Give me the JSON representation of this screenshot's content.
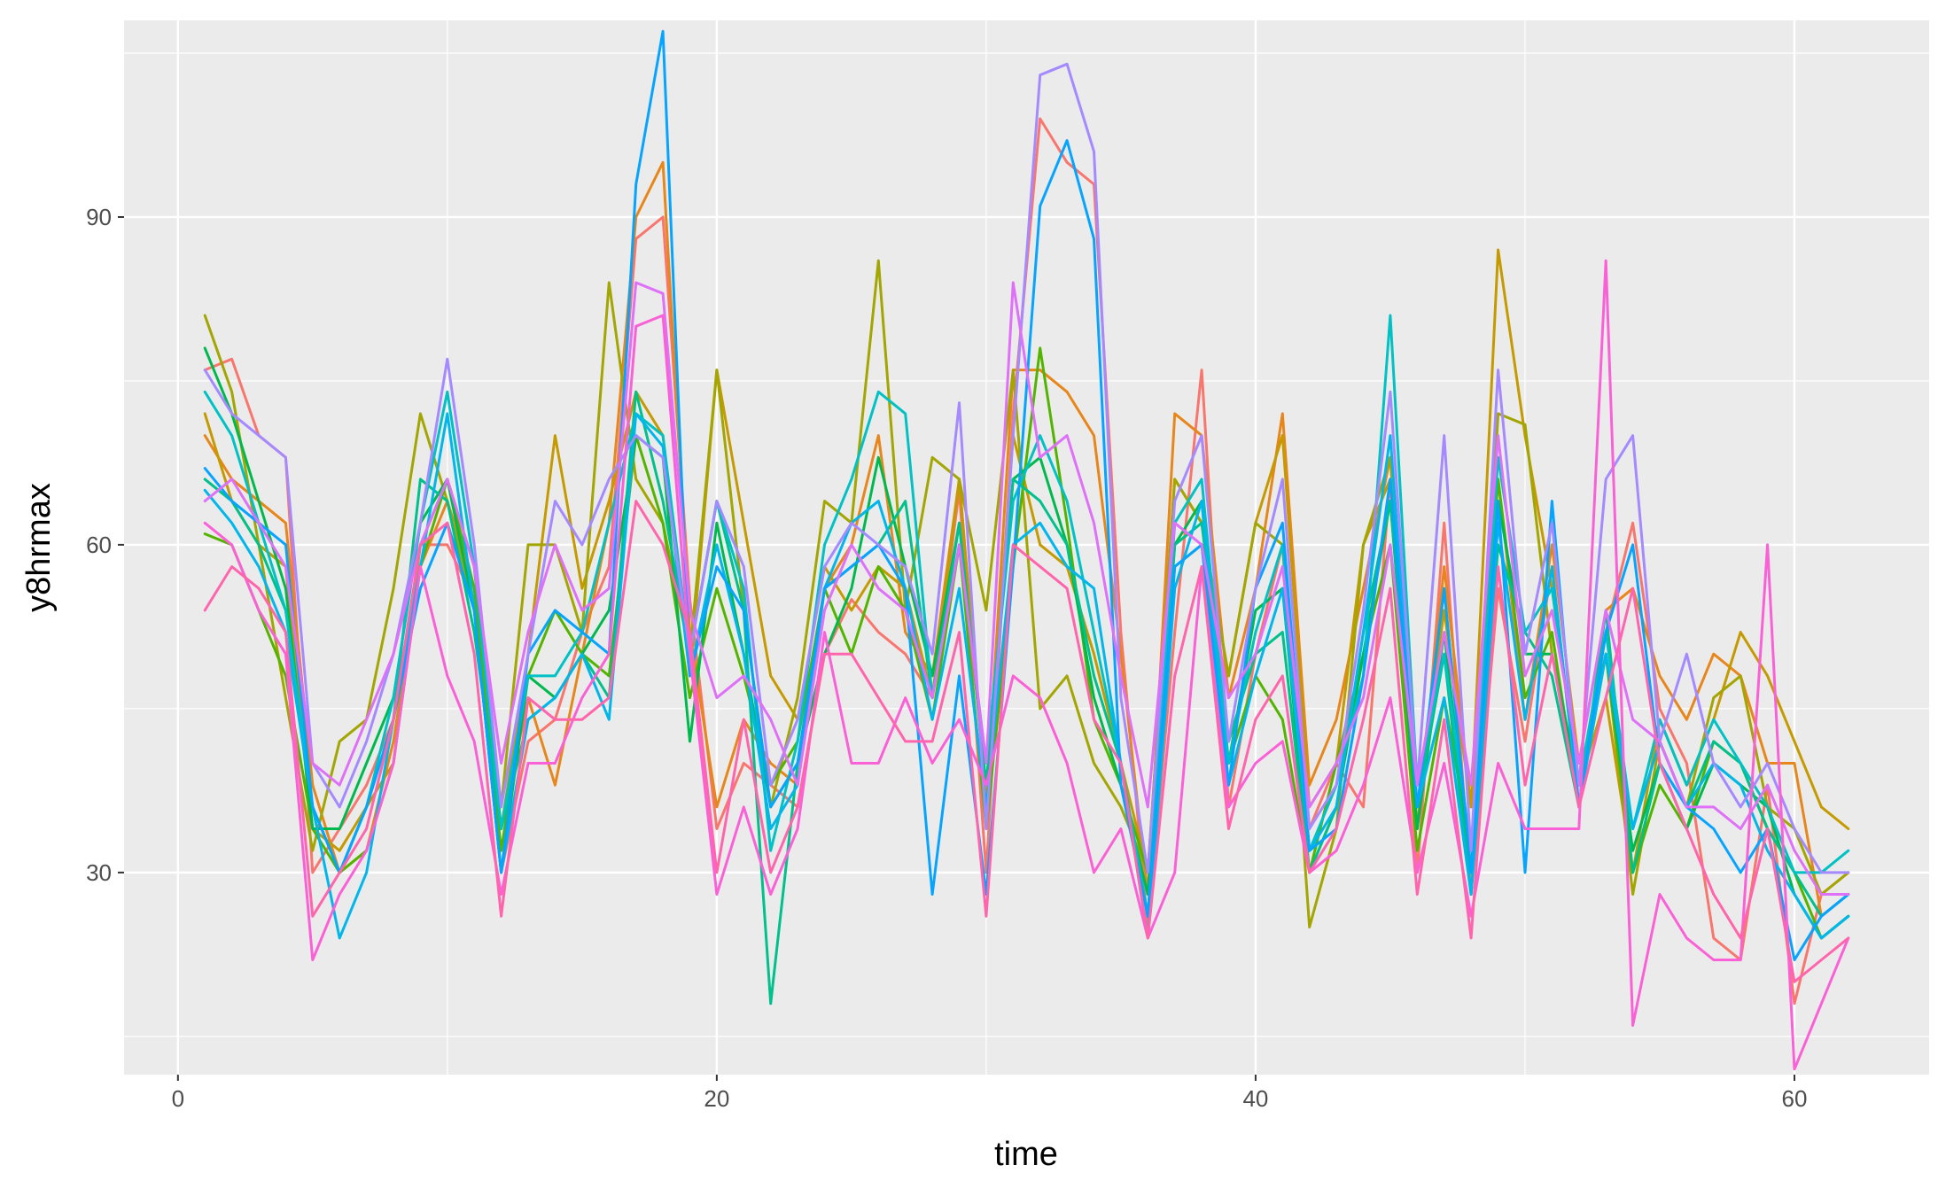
{
  "chart_data": {
    "type": "line",
    "title": "",
    "xlabel": "time",
    "ylabel": "y8hrmax",
    "xlim": [
      -2,
      65
    ],
    "ylim": [
      11.5,
      108
    ],
    "x_ticks": [
      0,
      20,
      40,
      60
    ],
    "x_tick_labels": [
      "0",
      "20",
      "40",
      "60"
    ],
    "y_ticks": [
      30,
      60,
      90
    ],
    "y_tick_labels": [
      "30",
      "60",
      "90"
    ],
    "grid": true,
    "legend": "none",
    "x": [
      1,
      2,
      3,
      4,
      5,
      6,
      7,
      8,
      9,
      10,
      11,
      12,
      13,
      14,
      15,
      16,
      17,
      18,
      19,
      20,
      21,
      22,
      23,
      24,
      25,
      26,
      27,
      28,
      29,
      30,
      31,
      32,
      33,
      34,
      35,
      36,
      37,
      38,
      39,
      40,
      41,
      42,
      43,
      44,
      45,
      46,
      47,
      48,
      49,
      50,
      51,
      52,
      53,
      54,
      55,
      56,
      57,
      58,
      59,
      60,
      61,
      62
    ],
    "series": [
      {
        "color": "#F8766D",
        "values": [
          76,
          77,
          70,
          68,
          30,
          34,
          38,
          44,
          60,
          60,
          55,
          30,
          42,
          44,
          52,
          58,
          88,
          90,
          55,
          34,
          40,
          38,
          36,
          50,
          55,
          52,
          50,
          46,
          65,
          30,
          72,
          99,
          95,
          93,
          52,
          25,
          52,
          76,
          36,
          50,
          60,
          34,
          40,
          36,
          66,
          30,
          62,
          28,
          56,
          42,
          58,
          36,
          52,
          62,
          45,
          40,
          24,
          22,
          38,
          18,
          28,
          30
        ]
      },
      {
        "color": "#E7861B",
        "values": [
          70,
          66,
          64,
          62,
          38,
          30,
          32,
          42,
          58,
          64,
          56,
          34,
          46,
          38,
          50,
          62,
          90,
          95,
          52,
          36,
          44,
          40,
          38,
          56,
          60,
          70,
          52,
          48,
          66,
          36,
          76,
          76,
          74,
          70,
          50,
          28,
          72,
          70,
          46,
          56,
          72,
          38,
          44,
          56,
          68,
          34,
          58,
          36,
          66,
          44,
          60,
          40,
          54,
          56,
          48,
          44,
          50,
          48,
          40,
          40,
          26,
          28
        ]
      },
      {
        "color": "#C49A00",
        "values": [
          72,
          64,
          60,
          58,
          34,
          32,
          36,
          40,
          60,
          66,
          58,
          34,
          50,
          70,
          56,
          64,
          74,
          70,
          48,
          76,
          62,
          48,
          44,
          58,
          54,
          58,
          56,
          46,
          66,
          36,
          70,
          60,
          58,
          50,
          40,
          30,
          66,
          62,
          48,
          62,
          70,
          36,
          40,
          60,
          66,
          36,
          54,
          36,
          87,
          70,
          56,
          38,
          46,
          30,
          44,
          38,
          44,
          52,
          48,
          42,
          36,
          34
        ]
      },
      {
        "color": "#A3A500",
        "values": [
          81,
          74,
          60,
          46,
          32,
          42,
          44,
          56,
          72,
          64,
          54,
          36,
          60,
          60,
          52,
          84,
          66,
          62,
          50,
          76,
          54,
          36,
          46,
          64,
          62,
          86,
          54,
          68,
          66,
          54,
          76,
          45,
          48,
          40,
          36,
          30,
          66,
          62,
          48,
          62,
          60,
          25,
          34,
          60,
          68,
          34,
          56,
          30,
          72,
          71,
          50,
          38,
          50,
          28,
          42,
          36,
          46,
          48,
          36,
          34,
          28,
          30
        ]
      },
      {
        "color": "#53B400",
        "values": [
          61,
          60,
          54,
          48,
          34,
          30,
          32,
          40,
          58,
          66,
          56,
          32,
          48,
          54,
          50,
          48,
          70,
          62,
          46,
          56,
          48,
          38,
          42,
          56,
          50,
          58,
          54,
          44,
          60,
          34,
          58,
          78,
          62,
          44,
          38,
          30,
          58,
          60,
          40,
          48,
          44,
          30,
          40,
          50,
          60,
          32,
          46,
          32,
          66,
          46,
          52,
          36,
          50,
          30,
          38,
          34,
          42,
          40,
          34,
          30,
          24,
          26
        ]
      },
      {
        "color": "#00B94E",
        "values": [
          78,
          72,
          64,
          56,
          34,
          34,
          40,
          46,
          62,
          66,
          54,
          30,
          48,
          46,
          50,
          54,
          70,
          68,
          42,
          62,
          50,
          36,
          40,
          50,
          56,
          68,
          58,
          48,
          62,
          38,
          66,
          68,
          60,
          46,
          38,
          28,
          60,
          64,
          40,
          54,
          56,
          30,
          36,
          50,
          64,
          34,
          52,
          30,
          64,
          50,
          50,
          38,
          50,
          32,
          40,
          34,
          40,
          38,
          36,
          28,
          24,
          26
        ]
      },
      {
        "color": "#00C08B",
        "values": [
          66,
          64,
          60,
          54,
          36,
          30,
          36,
          44,
          66,
          64,
          52,
          34,
          44,
          46,
          50,
          46,
          74,
          64,
          50,
          64,
          54,
          18,
          40,
          56,
          58,
          60,
          64,
          46,
          62,
          38,
          66,
          64,
          60,
          48,
          40,
          26,
          60,
          62,
          42,
          50,
          52,
          30,
          36,
          52,
          64,
          36,
          50,
          28,
          60,
          52,
          48,
          36,
          54,
          30,
          40,
          36,
          42,
          40,
          34,
          30,
          26,
          28
        ]
      },
      {
        "color": "#00C1C4",
        "values": [
          74,
          70,
          62,
          54,
          36,
          30,
          36,
          46,
          62,
          74,
          58,
          34,
          48,
          48,
          52,
          62,
          72,
          70,
          50,
          64,
          56,
          32,
          42,
          60,
          66,
          74,
          72,
          46,
          60,
          40,
          64,
          70,
          64,
          52,
          40,
          26,
          62,
          66,
          40,
          52,
          60,
          32,
          38,
          48,
          81,
          38,
          50,
          32,
          68,
          52,
          56,
          38,
          52,
          34,
          44,
          38,
          44,
          40,
          36,
          30,
          30,
          32
        ]
      },
      {
        "color": "#00B6EB",
        "values": [
          65,
          62,
          58,
          52,
          36,
          24,
          30,
          44,
          58,
          72,
          54,
          30,
          44,
          46,
          50,
          44,
          72,
          69,
          48,
          60,
          50,
          34,
          38,
          56,
          62,
          64,
          56,
          44,
          56,
          36,
          60,
          62,
          58,
          56,
          40,
          24,
          56,
          64,
          38,
          48,
          56,
          32,
          36,
          52,
          70,
          36,
          46,
          28,
          62,
          44,
          58,
          36,
          50,
          34,
          42,
          36,
          40,
          38,
          32,
          28,
          24,
          26
        ]
      },
      {
        "color": "#06A4FF",
        "values": [
          67,
          64,
          62,
          60,
          36,
          30,
          36,
          44,
          56,
          62,
          54,
          30,
          50,
          54,
          52,
          50,
          93,
          107,
          48,
          58,
          54,
          36,
          40,
          56,
          58,
          60,
          56,
          28,
          48,
          28,
          58,
          91,
          97,
          88,
          38,
          26,
          58,
          60,
          38,
          56,
          62,
          32,
          34,
          48,
          66,
          36,
          56,
          30,
          64,
          30,
          64,
          36,
          52,
          60,
          40,
          36,
          34,
          30,
          34,
          22,
          26,
          28
        ]
      },
      {
        "color": "#A58AFF",
        "values": [
          76,
          72,
          70,
          68,
          40,
          36,
          42,
          50,
          62,
          77,
          60,
          36,
          50,
          64,
          60,
          66,
          70,
          68,
          50,
          64,
          58,
          38,
          44,
          58,
          62,
          60,
          58,
          50,
          73,
          34,
          70,
          103,
          104,
          96,
          46,
          30,
          64,
          70,
          42,
          56,
          66,
          34,
          38,
          54,
          74,
          38,
          70,
          32,
          76,
          50,
          62,
          38,
          66,
          70,
          42,
          50,
          40,
          36,
          40,
          34,
          30,
          30
        ]
      },
      {
        "color": "#DF70F8",
        "values": [
          64,
          66,
          62,
          58,
          40,
          38,
          44,
          50,
          60,
          66,
          58,
          40,
          52,
          60,
          54,
          56,
          84,
          83,
          54,
          46,
          48,
          44,
          38,
          54,
          60,
          56,
          54,
          46,
          60,
          40,
          84,
          68,
          70,
          62,
          48,
          36,
          62,
          60,
          46,
          50,
          58,
          36,
          40,
          46,
          60,
          38,
          52,
          38,
          70,
          48,
          54,
          40,
          54,
          44,
          42,
          36,
          36,
          34,
          38,
          32,
          28,
          28
        ]
      },
      {
        "color": "#FB61D7",
        "values": [
          62,
          60,
          54,
          50,
          22,
          28,
          32,
          40,
          58,
          48,
          42,
          28,
          40,
          40,
          46,
          50,
          80,
          81,
          50,
          28,
          36,
          28,
          34,
          52,
          40,
          40,
          46,
          40,
          44,
          38,
          48,
          46,
          40,
          30,
          34,
          24,
          30,
          58,
          36,
          40,
          42,
          30,
          32,
          38,
          46,
          30,
          40,
          26,
          40,
          34,
          34,
          34,
          86,
          16,
          28,
          24,
          22,
          22,
          60,
          12,
          18,
          24
        ]
      },
      {
        "color": "#FF65AC",
        "values": [
          54,
          58,
          56,
          52,
          26,
          30,
          34,
          44,
          60,
          62,
          50,
          26,
          46,
          44,
          44,
          46,
          64,
          60,
          52,
          30,
          44,
          30,
          36,
          50,
          50,
          46,
          42,
          42,
          52,
          26,
          60,
          58,
          56,
          44,
          40,
          24,
          48,
          58,
          34,
          44,
          48,
          30,
          34,
          44,
          56,
          28,
          44,
          24,
          58,
          38,
          50,
          36,
          46,
          56,
          40,
          34,
          28,
          24,
          34,
          20,
          22,
          24
        ]
      }
    ]
  }
}
